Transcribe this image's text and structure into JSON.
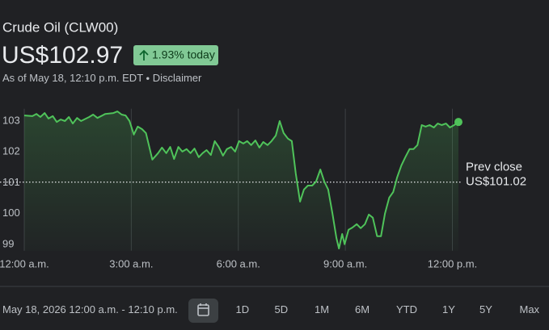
{
  "header": {
    "title": "Crude Oil (CLW00)",
    "price": "US$102.97",
    "change": "1.93% today",
    "as_of": "As of May 18, 12:10 p.m. EDT",
    "disclaimer": "Disclaimer"
  },
  "chart_data": {
    "type": "line",
    "color": "#4fc35a",
    "x": [
      0,
      0.23,
      0.34,
      0.45,
      0.57,
      0.68,
      0.8,
      0.91,
      1.02,
      1.14,
      1.25,
      1.36,
      1.48,
      1.59,
      1.82,
      1.93,
      2.05,
      2.27,
      2.5,
      2.61,
      2.73,
      2.84,
      2.95,
      3.07,
      3.18,
      3.3,
      3.41,
      3.52,
      3.59,
      3.75,
      3.86,
      3.98,
      4.09,
      4.2,
      4.32,
      4.43,
      4.55,
      4.66,
      4.77,
      4.89,
      5.0,
      5.11,
      5.23,
      5.34,
      5.45,
      5.57,
      5.68,
      5.8,
      5.91,
      6.02,
      6.14,
      6.25,
      6.36,
      6.48,
      6.59,
      6.7,
      6.82,
      6.93,
      7.05,
      7.16,
      7.27,
      7.39,
      7.5,
      7.61,
      7.73,
      7.84,
      7.95,
      8.07,
      8.18,
      8.3,
      8.41,
      8.52,
      8.64,
      8.75,
      8.82,
      8.91,
      8.98,
      9.09,
      9.2,
      9.32,
      9.43,
      9.55,
      9.66,
      9.77,
      9.89,
      10.0,
      10.11,
      10.23,
      10.34,
      10.45,
      10.57,
      10.68,
      10.8,
      10.91,
      11.02,
      11.14,
      11.25,
      11.36,
      11.48,
      11.59,
      11.7,
      11.82,
      11.93,
      12.05,
      12.17
    ],
    "values": [
      103.18,
      103.16,
      103.23,
      103.13,
      103.26,
      103.08,
      103.16,
      102.97,
      103.05,
      103.0,
      103.13,
      102.92,
      103.1,
      103.0,
      103.13,
      103.21,
      103.1,
      103.23,
      103.26,
      103.31,
      103.21,
      103.18,
      103.0,
      102.56,
      102.82,
      102.74,
      102.61,
      102.09,
      101.75,
      101.96,
      102.14,
      101.96,
      102.16,
      101.77,
      102.16,
      102.01,
      102.09,
      101.96,
      102.11,
      101.83,
      101.96,
      102.06,
      101.9,
      102.35,
      102.16,
      101.88,
      102.09,
      102.16,
      102.01,
      102.35,
      102.27,
      102.35,
      102.22,
      102.37,
      102.14,
      102.32,
      102.22,
      102.35,
      102.53,
      103.0,
      102.61,
      102.43,
      102.35,
      101.3,
      100.39,
      100.78,
      100.91,
      100.91,
      101.04,
      101.43,
      101.04,
      100.78,
      100.0,
      99.21,
      98.87,
      99.34,
      99.01,
      99.48,
      99.55,
      99.66,
      99.53,
      99.66,
      99.97,
      99.87,
      99.27,
      99.27,
      100.0,
      100.52,
      100.7,
      101.17,
      101.56,
      101.83,
      102.09,
      102.09,
      102.22,
      102.87,
      102.82,
      102.87,
      102.79,
      102.92,
      102.87,
      102.92,
      102.79,
      102.87,
      102.97
    ],
    "xlim": [
      0,
      12.17
    ],
    "ylim": [
      98.8,
      103.4
    ],
    "xticks": [
      {
        "value": 0,
        "label": "12:00 a.m."
      },
      {
        "value": 3,
        "label": "3:00 a.m."
      },
      {
        "value": 6,
        "label": "6:00 a.m."
      },
      {
        "value": 9,
        "label": "9:00 a.m."
      },
      {
        "value": 12,
        "label": "12:00 p.m."
      }
    ],
    "yticks": [
      99,
      100,
      101,
      102,
      103
    ],
    "grid": "x",
    "reference": {
      "label": "Prev close",
      "value": 101.02,
      "value_label": "US$101.02"
    }
  },
  "controls": {
    "range": "May 18, 2026 12:00 a.m. - 12:10 p.m.",
    "periods": [
      "1D",
      "5D",
      "1M",
      "6M",
      "YTD",
      "1Y",
      "5Y",
      "Max"
    ]
  }
}
